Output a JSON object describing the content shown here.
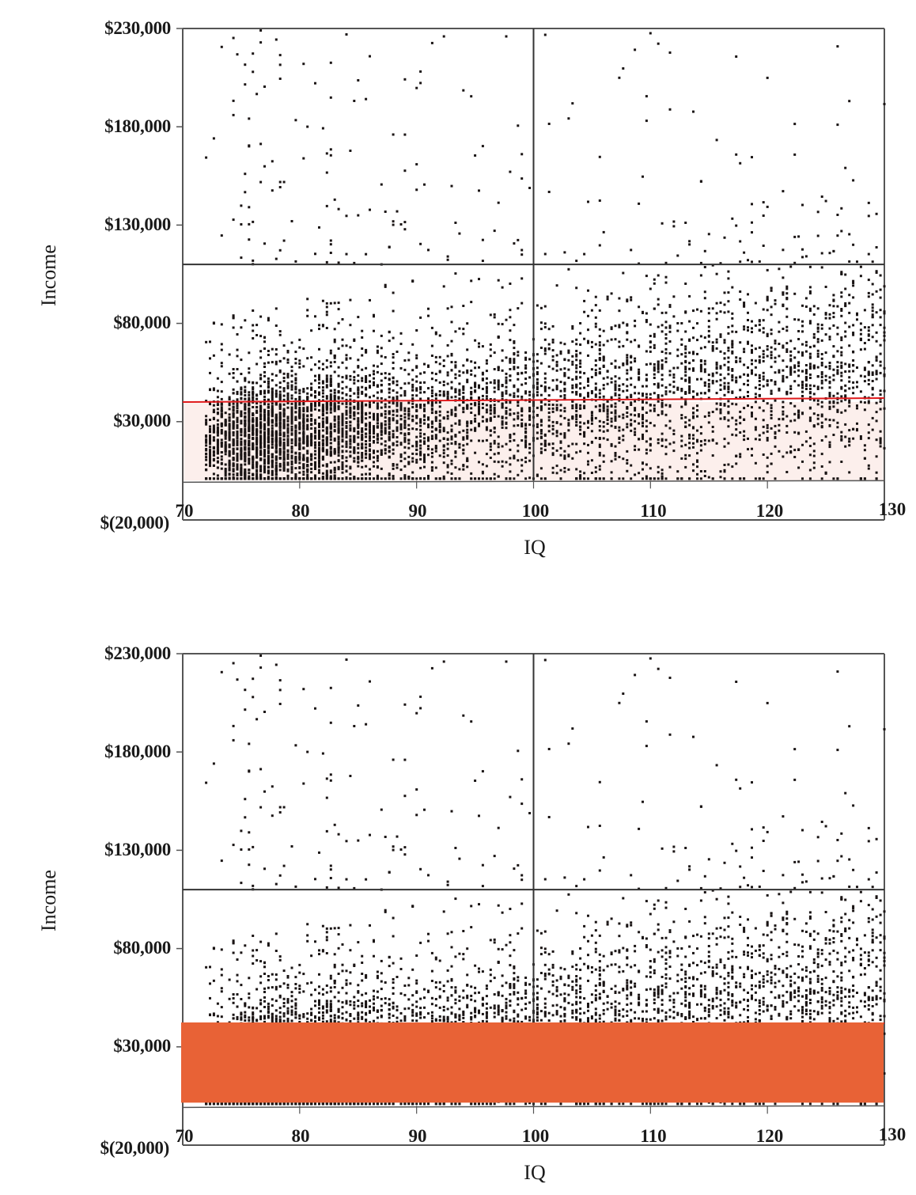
{
  "chart_data": [
    {
      "type": "scatter",
      "title": "",
      "xlabel": "IQ",
      "ylabel": "Income",
      "xlim": [
        70,
        130
      ],
      "ylim": [
        -20000,
        230000
      ],
      "x_ticks": [
        "70",
        "80",
        "90",
        "100",
        "110",
        "120",
        "130"
      ],
      "y_ticks": [
        "$230,000",
        "$180,000",
        "$130,000",
        "$80,000",
        "$30,000",
        "$(20,000)"
      ],
      "grid": false,
      "legend": null,
      "reference_lines": [
        {
          "orientation": "vertical",
          "x": 100,
          "color": "#333333"
        },
        {
          "orientation": "horizontal",
          "y": 110000,
          "color": "#333333"
        },
        {
          "orientation": "horizontal",
          "y": 40000,
          "y_end": 42000,
          "color": "#e0191b"
        }
      ],
      "shaded_region": {
        "y_from": 0,
        "y_to": 40000,
        "color": "#fcefec",
        "opacity": 0.9
      },
      "points_description": "Several thousand individuals; dense cloud between $0 and ~$90,000 across IQ 72–130, densest near IQ 75–85 at $0–$30,000; sparse outliers up to ~$230,000, more frequent at higher IQ",
      "approx_point_count": 6000
    },
    {
      "type": "scatter",
      "title": "",
      "xlabel": "IQ",
      "ylabel": "Income",
      "xlim": [
        70,
        130
      ],
      "ylim": [
        -20000,
        230000
      ],
      "x_ticks": [
        "70",
        "80",
        "90",
        "100",
        "110",
        "120",
        "130"
      ],
      "y_ticks": [
        "$230,000",
        "$180,000",
        "$130,000",
        "$80,000",
        "$30,000",
        "$(20,000)"
      ],
      "grid": false,
      "legend": null,
      "reference_lines": [
        {
          "orientation": "vertical",
          "x": 100,
          "color": "#333333"
        },
        {
          "orientation": "horizontal",
          "y": 110000,
          "color": "#333333"
        },
        {
          "orientation": "horizontal",
          "y": 40000,
          "y_end": 42000,
          "color": "#e0191b"
        }
      ],
      "occluding_block": {
        "y_from": 0,
        "y_to": 40000,
        "x_from": 70,
        "x_to": 130,
        "color": "#e86236"
      },
      "points_description": "Same data as the top chart; points below ~$40,000 are covered by a solid orange block"
    }
  ],
  "charts": {
    "top": {
      "ylabel": "Income",
      "xlabel": "IQ",
      "yticks": [
        "$230,000",
        "$180,000",
        "$130,000",
        "$80,000",
        "$30,000",
        "$(20,000)"
      ],
      "xticks": [
        "70",
        "80",
        "90",
        "100",
        "110",
        "120",
        "130"
      ]
    },
    "bottom": {
      "ylabel": "Income",
      "xlabel": "IQ",
      "yticks": [
        "$230,000",
        "$180,000",
        "$130,000",
        "$80,000",
        "$30,000",
        "$(20,000)"
      ],
      "xticks": [
        "70",
        "80",
        "90",
        "100",
        "110",
        "120",
        "130"
      ]
    }
  },
  "colors": {
    "axis": "#555555",
    "points": "#1a1414",
    "red_line": "#e0191b",
    "shade": "#fcefec",
    "block": "#e86236"
  }
}
